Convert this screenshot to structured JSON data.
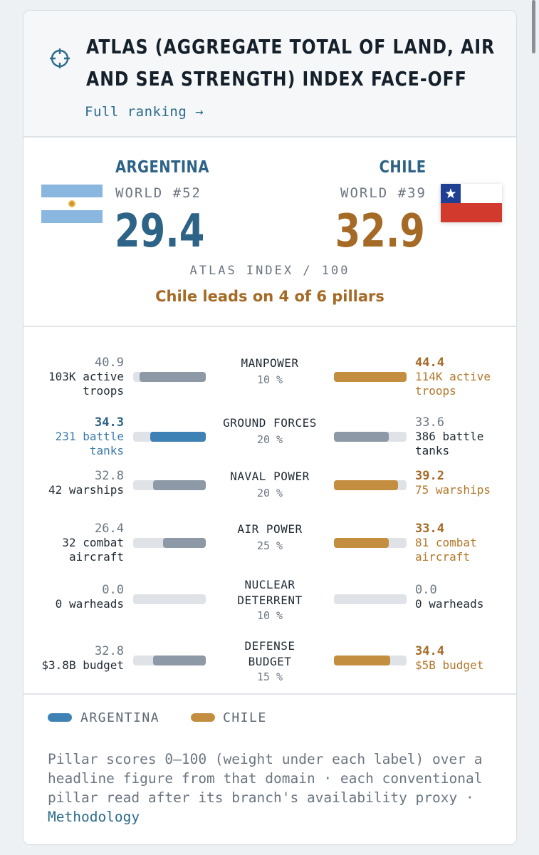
{
  "header": {
    "title": "ATLAS (AGGREGATE TOTAL OF LAND, AIR AND SEA STRENGTH) INDEX FACE-OFF",
    "full_ranking": "Full ranking →",
    "icon": "crosshair-icon"
  },
  "summary": {
    "left": {
      "name": "ARGENTINA",
      "rank": "WORLD #52",
      "score": "29.4",
      "flag": "argentina-flag"
    },
    "right": {
      "name": "CHILE",
      "rank": "WORLD #39",
      "score": "32.9",
      "flag": "chile-flag"
    },
    "index_label": "ATLAS INDEX / 100",
    "lead_text": "Chile leads on 4 of 6 pillars"
  },
  "pillars": [
    {
      "label": "MANPOWER",
      "weight": "10 %",
      "left_score": "40.9",
      "left_fig": "103K active troops",
      "right_score": "44.4",
      "right_fig": "114K active troops",
      "leader": "right",
      "left_value": 40.9,
      "right_value": 44.4
    },
    {
      "label": "GROUND FORCES",
      "weight": "20 %",
      "left_score": "34.3",
      "left_fig": "231 battle tanks",
      "right_score": "33.6",
      "right_fig": "386 battle tanks",
      "leader": "left",
      "left_value": 34.3,
      "right_value": 33.6
    },
    {
      "label": "NAVAL POWER",
      "weight": "20 %",
      "left_score": "32.8",
      "left_fig": "42 warships",
      "right_score": "39.2",
      "right_fig": "75 warships",
      "leader": "right",
      "left_value": 32.8,
      "right_value": 39.2
    },
    {
      "label": "AIR POWER",
      "weight": "25 %",
      "left_score": "26.4",
      "left_fig": "32 combat aircraft",
      "right_score": "33.4",
      "right_fig": "81 combat aircraft",
      "leader": "right",
      "left_value": 26.4,
      "right_value": 33.4
    },
    {
      "label": "NUCLEAR DETERRENT",
      "weight": "10 %",
      "left_score": "0.0",
      "left_fig": "0 warheads",
      "right_score": "0.0",
      "right_fig": "0 warheads",
      "leader": "none",
      "left_value": 0,
      "right_value": 0
    },
    {
      "label": "DEFENSE BUDGET",
      "weight": "15 %",
      "left_score": "32.8",
      "left_fig": "$3.8B budget",
      "right_score": "34.4",
      "right_fig": "$5B budget",
      "leader": "right",
      "left_value": 32.8,
      "right_value": 34.4
    }
  ],
  "legend": {
    "left": "ARGENTINA",
    "right": "CHILE"
  },
  "footnote": {
    "text": "Pillar scores 0–100 (weight under each label) over a headline figure from that domain · each conventional pillar read after its branch's availability proxy · ",
    "link": "Methodology"
  },
  "colors": {
    "argentina": "#3e82b5",
    "chile": "#c38e3f",
    "neutral": "#8d99a6",
    "track": "#dfe3e8"
  }
}
